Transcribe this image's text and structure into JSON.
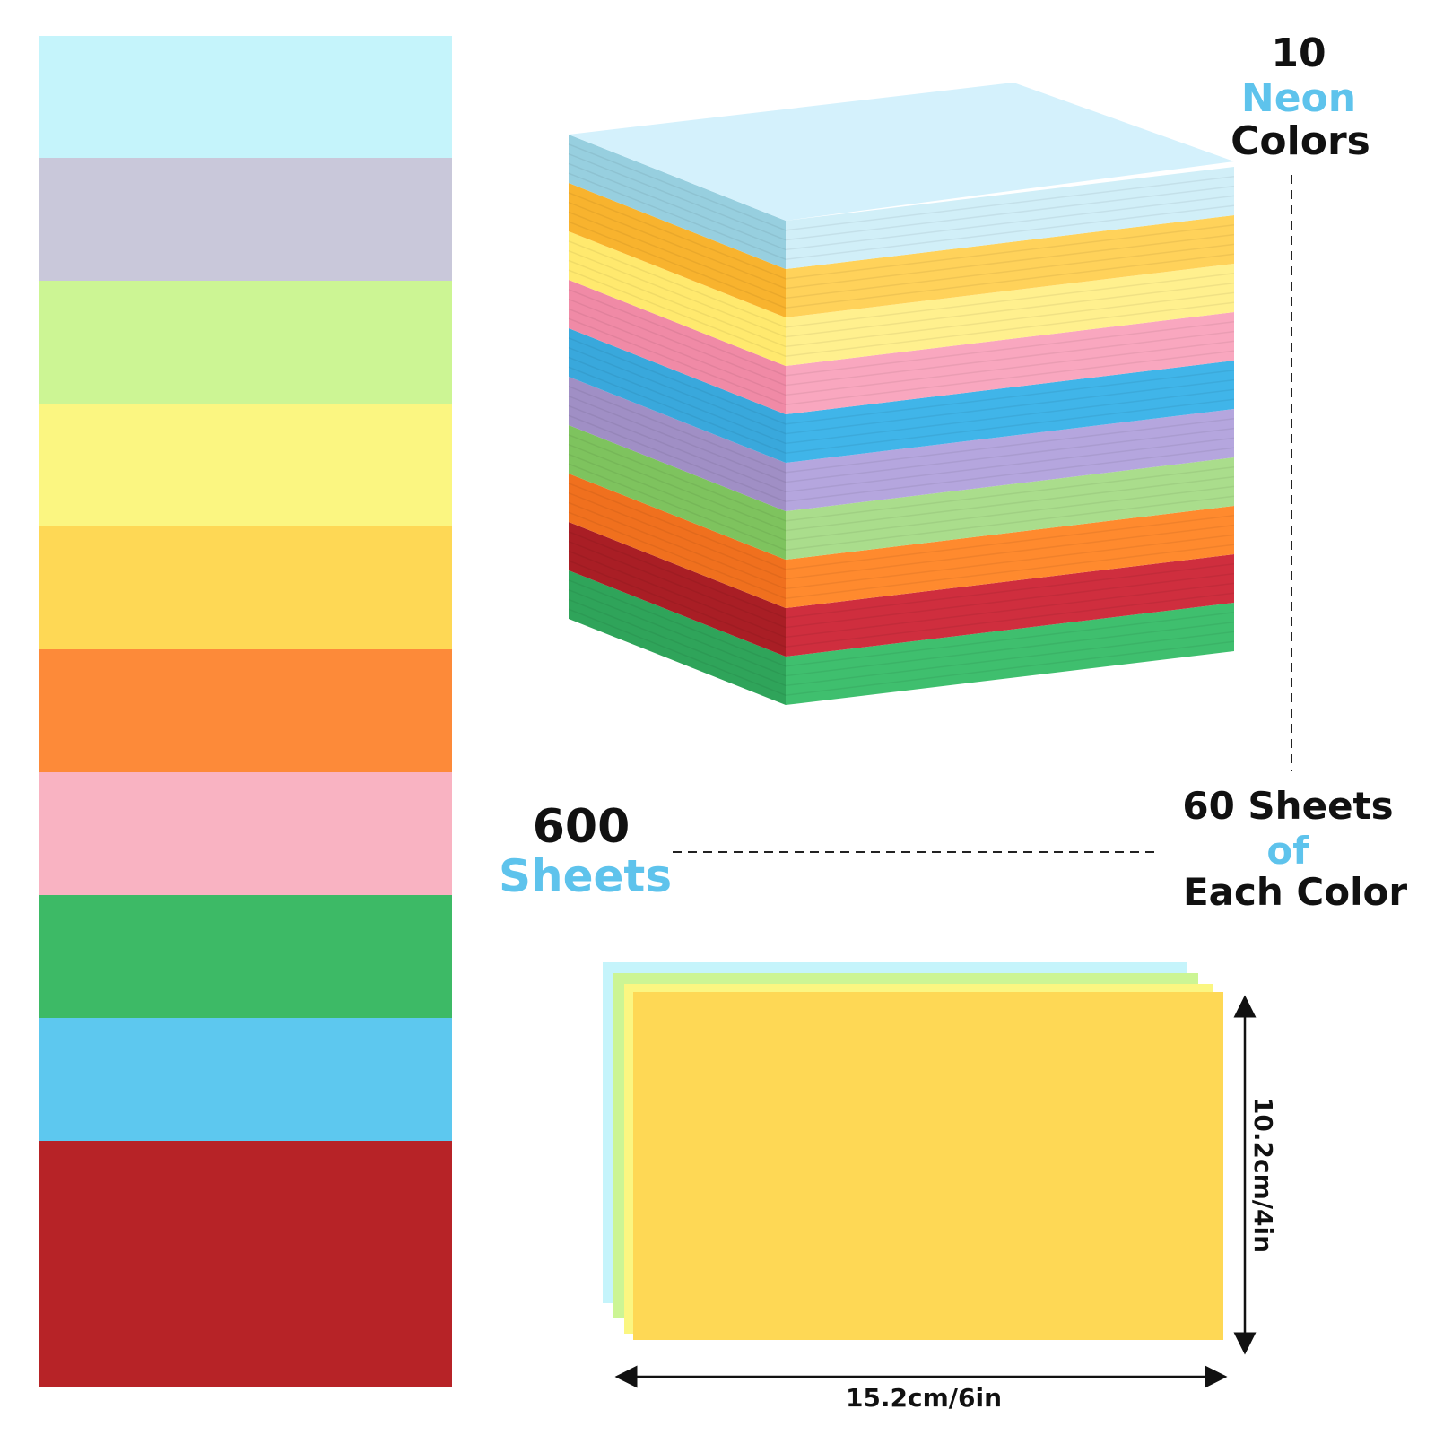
{
  "swatches": [
    {
      "name": "light-cyan",
      "color": "#c5f4fb"
    },
    {
      "name": "lavender-gray",
      "color": "#c9c8da"
    },
    {
      "name": "lime",
      "color": "#ccf594"
    },
    {
      "name": "lemon",
      "color": "#fbf681"
    },
    {
      "name": "golden-yellow",
      "color": "#fed855"
    },
    {
      "name": "orange",
      "color": "#fd8a39"
    },
    {
      "name": "pink",
      "color": "#f9b3c2"
    },
    {
      "name": "green",
      "color": "#3dba66"
    },
    {
      "name": "sky-blue",
      "color": "#5dc8ef"
    },
    {
      "name": "red",
      "color": "#b72327"
    }
  ],
  "stack_layers": [
    {
      "name": "light-blue",
      "front": "#97cfdf",
      "side": "#d1eff8",
      "top": "#d4f1fc"
    },
    {
      "name": "orange-yellow",
      "front": "#f8b32e",
      "side": "#ffd25a"
    },
    {
      "name": "yellow",
      "front": "#ffe96e",
      "side": "#fff08e"
    },
    {
      "name": "pink",
      "front": "#f08aa6",
      "side": "#f9a7bf"
    },
    {
      "name": "blue",
      "front": "#39a8dc",
      "side": "#40b5e9"
    },
    {
      "name": "purple",
      "front": "#a08fc5",
      "side": "#b5a6de"
    },
    {
      "name": "green-light",
      "front": "#7ec35e",
      "side": "#aadd8c"
    },
    {
      "name": "orange",
      "front": "#f0701e",
      "side": "#ff8a2e"
    },
    {
      "name": "red",
      "front": "#a91e25",
      "side": "#cf2e3e"
    },
    {
      "name": "green",
      "front": "#2fa45a",
      "side": "#3fbf6e"
    }
  ],
  "labels": {
    "colors_count": "10",
    "colors_type": "Neon",
    "colors_word": "Colors",
    "sheets_total": "600",
    "sheets_word": "Sheets",
    "per_color_line1": "60 Sheets",
    "per_color_line2": "of",
    "per_color_line3": "Each Color",
    "width_dimension": "15.2cm/6in",
    "height_dimension": "10.2cm/4in"
  },
  "cards": [
    {
      "name": "cyan-card",
      "color": "#c5f4fb"
    },
    {
      "name": "lime-card",
      "color": "#ccf594"
    },
    {
      "name": "lemon-card",
      "color": "#fbf681"
    },
    {
      "name": "yellow-card",
      "color": "#fed855"
    }
  ]
}
